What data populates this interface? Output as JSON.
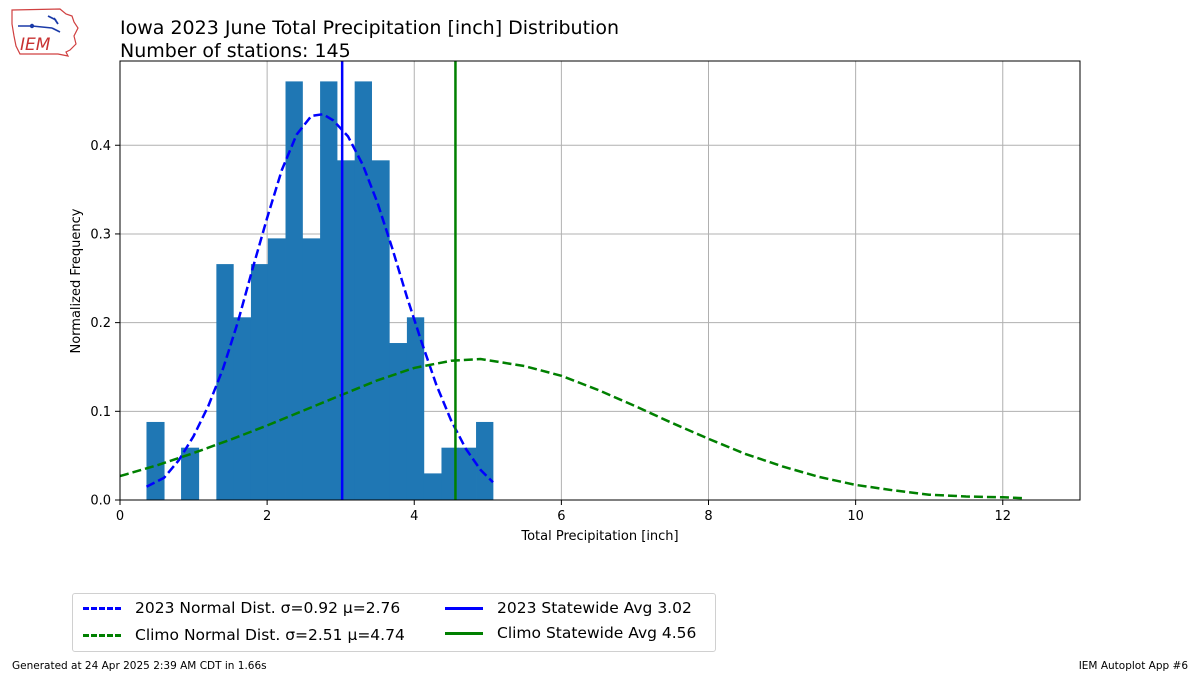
{
  "header": {
    "logo_text": "IEM",
    "title_line1": "Iowa 2023 June Total Precipitation [inch] Distribution",
    "title_line2": "Number of stations: 145"
  },
  "footer": {
    "generated": "Generated at 24 Apr 2025 2:39 AM CDT in 1.66s",
    "app": "IEM Autoplot App #6"
  },
  "colors": {
    "bar": "#1f77b4",
    "obs": "#0000ff",
    "climo": "#008000",
    "grid": "#b0b0b0"
  },
  "chart_data": {
    "type": "bar",
    "xlabel": "Total Precipitation [inch]",
    "ylabel": "Normalized Frequency",
    "xlim": [
      0,
      13.05
    ],
    "ylim": [
      0,
      0.495
    ],
    "xticks": [
      0,
      2,
      4,
      6,
      8,
      10,
      12
    ],
    "yticks": [
      0.0,
      0.1,
      0.2,
      0.3,
      0.4
    ],
    "grid": true,
    "bin_edges": [
      0.36,
      0.6,
      0.83,
      1.07,
      1.31,
      1.54,
      1.78,
      2.01,
      2.25,
      2.48,
      2.72,
      2.95,
      3.19,
      3.42,
      3.66,
      3.9,
      4.13,
      4.37,
      4.6,
      4.84,
      5.07
    ],
    "hist_values": [
      0.088,
      0,
      0.059,
      0,
      0.266,
      0.206,
      0.266,
      0.295,
      0.472,
      0.295,
      0.472,
      0.383,
      0.472,
      0.383,
      0.177,
      0.206,
      0.03,
      0.059,
      0.059,
      0.088
    ],
    "series": [
      {
        "name": "2023 Normal Dist. σ=0.92 μ=2.76",
        "type": "line",
        "style": "dashed",
        "color": "#0000ff",
        "x": [
          0.36,
          0.6,
          0.8,
          1.0,
          1.2,
          1.4,
          1.6,
          1.8,
          2.0,
          2.2,
          2.4,
          2.6,
          2.76,
          2.9,
          3.1,
          3.3,
          3.5,
          3.7,
          3.9,
          4.1,
          4.3,
          4.5,
          4.7,
          4.9,
          5.07
        ],
        "y": [
          0.015,
          0.025,
          0.045,
          0.072,
          0.106,
          0.148,
          0.2,
          0.26,
          0.318,
          0.372,
          0.412,
          0.433,
          0.435,
          0.428,
          0.41,
          0.378,
          0.335,
          0.284,
          0.229,
          0.178,
          0.13,
          0.09,
          0.058,
          0.034,
          0.02
        ]
      },
      {
        "name": "Climo Normal Dist. σ=2.51 μ=4.74",
        "type": "line",
        "style": "dashed",
        "color": "#008000",
        "x": [
          0,
          0.5,
          1,
          1.5,
          2,
          2.5,
          3,
          3.5,
          4,
          4.5,
          4.9,
          5.5,
          6,
          6.5,
          7,
          7.5,
          8,
          8.5,
          9,
          9.5,
          10,
          10.5,
          11,
          11.5,
          12,
          12.3
        ],
        "y": [
          0.027,
          0.039,
          0.053,
          0.068,
          0.084,
          0.101,
          0.118,
          0.135,
          0.149,
          0.157,
          0.159,
          0.151,
          0.14,
          0.124,
          0.106,
          0.087,
          0.069,
          0.052,
          0.038,
          0.026,
          0.017,
          0.011,
          0.006,
          0.004,
          0.003,
          0.002
        ]
      },
      {
        "name": "2023 Statewide Avg 3.02",
        "type": "vline",
        "style": "solid",
        "color": "#0000ff",
        "x": 3.02
      },
      {
        "name": "Climo Statewide Avg 4.56",
        "type": "vline",
        "style": "solid",
        "color": "#008000",
        "x": 4.56
      }
    ],
    "legend_position": "below-left"
  }
}
